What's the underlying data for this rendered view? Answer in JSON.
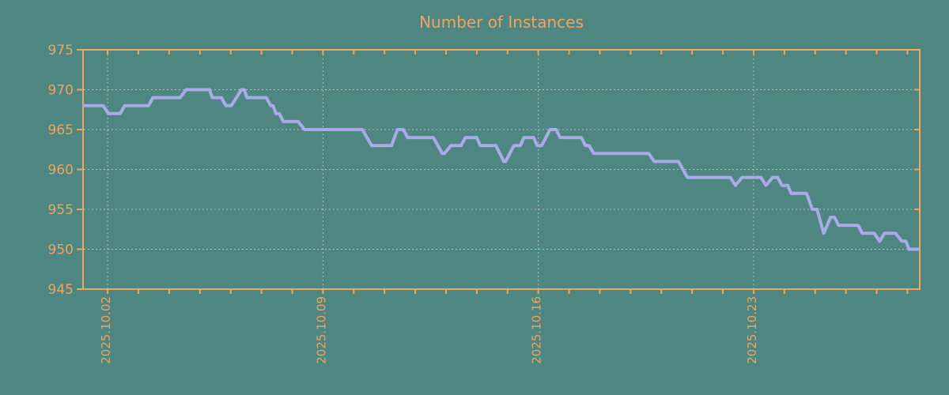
{
  "title": "Number of Instances",
  "colors": {
    "background": "#4e8781",
    "axis": "#efa45f",
    "line": "#aaaaeb",
    "grid": "#b9beb9"
  },
  "chart_data": {
    "type": "line",
    "title": "Number of Instances",
    "xlabel": "",
    "ylabel": "",
    "legend": false,
    "grid": true,
    "x_axis": {
      "unit": "days since 2025-10-01 00:00",
      "min": 0.2,
      "max": 27.4,
      "minor_tick_interval": 1,
      "major_ticks": [
        {
          "t": 1,
          "label": "2025.10.02"
        },
        {
          "t": 8,
          "label": "2025.10.09"
        },
        {
          "t": 15,
          "label": "2025.10.16"
        },
        {
          "t": 22,
          "label": "2025.10.23"
        }
      ]
    },
    "y_axis": {
      "min": 945,
      "max": 975,
      "ticks": [
        {
          "v": 945,
          "label": "945"
        },
        {
          "v": 950,
          "label": "950"
        },
        {
          "v": 955,
          "label": "955"
        },
        {
          "v": 960,
          "label": "960"
        },
        {
          "v": 965,
          "label": "965"
        },
        {
          "v": 970,
          "label": "970"
        },
        {
          "v": 975,
          "label": "975"
        }
      ]
    },
    "series": [
      {
        "name": "instances",
        "color": "#aaaaeb",
        "points": [
          [
            0.2,
            968
          ],
          [
            0.85,
            968
          ],
          [
            1.03,
            967
          ],
          [
            1.41,
            967
          ],
          [
            1.55,
            968
          ],
          [
            2.33,
            968
          ],
          [
            2.47,
            969
          ],
          [
            3.36,
            969
          ],
          [
            3.55,
            970
          ],
          [
            4.31,
            970
          ],
          [
            4.4,
            969
          ],
          [
            4.7,
            969
          ],
          [
            4.84,
            968
          ],
          [
            5.02,
            968
          ],
          [
            5.35,
            970
          ],
          [
            5.44,
            970
          ],
          [
            5.53,
            969
          ],
          [
            6.16,
            969
          ],
          [
            6.3,
            968
          ],
          [
            6.38,
            968
          ],
          [
            6.47,
            967
          ],
          [
            6.58,
            967
          ],
          [
            6.71,
            966
          ],
          [
            7.19,
            966
          ],
          [
            7.4,
            965
          ],
          [
            9.28,
            965
          ],
          [
            9.58,
            963
          ],
          [
            10.23,
            963
          ],
          [
            10.42,
            965
          ],
          [
            10.61,
            965
          ],
          [
            10.75,
            964
          ],
          [
            11.59,
            964
          ],
          [
            11.88,
            962
          ],
          [
            11.95,
            962
          ],
          [
            12.16,
            963
          ],
          [
            12.49,
            963
          ],
          [
            12.63,
            964
          ],
          [
            13.0,
            964
          ],
          [
            13.11,
            963
          ],
          [
            13.62,
            963
          ],
          [
            13.88,
            961
          ],
          [
            13.94,
            961
          ],
          [
            14.21,
            963
          ],
          [
            14.42,
            963
          ],
          [
            14.53,
            964
          ],
          [
            14.85,
            964
          ],
          [
            14.96,
            963
          ],
          [
            15.11,
            963
          ],
          [
            15.38,
            965
          ],
          [
            15.58,
            965
          ],
          [
            15.71,
            964
          ],
          [
            16.4,
            964
          ],
          [
            16.53,
            963
          ],
          [
            16.65,
            963
          ],
          [
            16.8,
            962
          ],
          [
            18.59,
            962
          ],
          [
            18.77,
            961
          ],
          [
            19.56,
            961
          ],
          [
            19.7,
            960
          ],
          [
            19.85,
            959
          ],
          [
            21.24,
            959
          ],
          [
            21.41,
            958
          ],
          [
            21.62,
            959
          ],
          [
            22.24,
            959
          ],
          [
            22.4,
            958
          ],
          [
            22.62,
            959
          ],
          [
            22.78,
            959
          ],
          [
            22.92,
            958
          ],
          [
            23.11,
            958
          ],
          [
            23.22,
            957
          ],
          [
            23.72,
            957
          ],
          [
            23.91,
            955
          ],
          [
            24.06,
            955
          ],
          [
            24.28,
            952
          ],
          [
            24.5,
            954
          ],
          [
            24.63,
            954
          ],
          [
            24.76,
            953
          ],
          [
            25.4,
            953
          ],
          [
            25.53,
            952
          ],
          [
            25.92,
            952
          ],
          [
            26.1,
            951
          ],
          [
            26.25,
            952
          ],
          [
            26.61,
            952
          ],
          [
            26.82,
            951
          ],
          [
            26.95,
            951
          ],
          [
            27.05,
            950
          ],
          [
            27.4,
            950
          ]
        ]
      }
    ]
  }
}
